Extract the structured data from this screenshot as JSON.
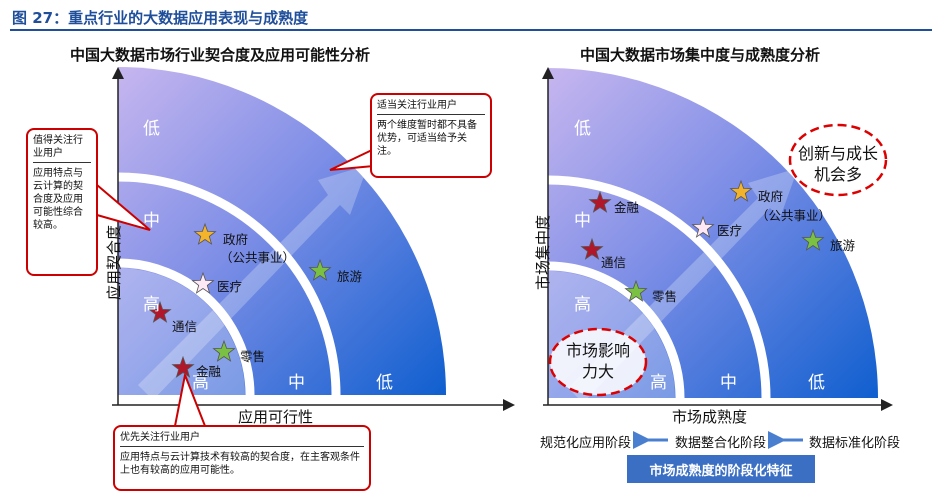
{
  "header": {
    "title": "图 27：重点行业的大数据应用表现与成熟度"
  },
  "left": {
    "title": "中国大数据市场行业契合度及应用可能性分析",
    "y_axis": "应用契合度",
    "x_axis": "应用可行性",
    "y_bands": [
      "低",
      "中",
      "高"
    ],
    "x_bands": [
      "高",
      "中",
      "低"
    ],
    "industries": [
      "政府",
      "（公共事业）",
      "旅游",
      "医疗",
      "通信",
      "零售",
      "金融"
    ],
    "callouts": [
      {
        "heading": "值得关注行业用户",
        "body": "应用特点与云计算的契合度及应用可能性综合较高。"
      },
      {
        "heading": "适当关注行业用户",
        "body": "两个维度暂时都不具备优势，可适当给予关注。"
      },
      {
        "heading": "优先关注行业用户",
        "body": "应用特点与云计算技术有较高的契合度，在主客观条件上也有较高的应用可能性。"
      }
    ]
  },
  "right": {
    "title": "中国大数据市场集中度与成熟度分析",
    "y_axis": "市场集中度",
    "x_axis": "市场成熟度",
    "y_bands": [
      "低",
      "中",
      "高"
    ],
    "x_bands": [
      "高",
      "中",
      "低"
    ],
    "industries": [
      "金融",
      "政府",
      "（公共事业）",
      "医疗",
      "旅游",
      "通信",
      "零售"
    ],
    "highlights": [
      "创新与成长机会多",
      "市场影响力大"
    ],
    "stages": [
      "规范化应用阶段",
      "数据整合化阶段",
      "数据标准化阶段"
    ],
    "stage_caption": "市场成熟度的阶段化特征"
  }
}
